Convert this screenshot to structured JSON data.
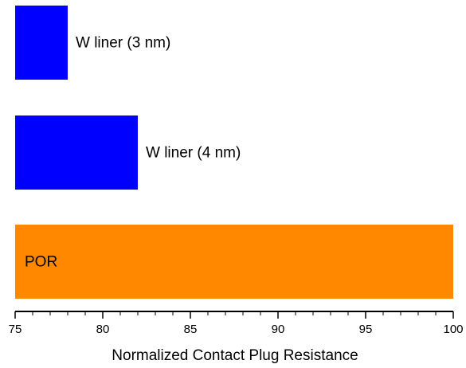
{
  "chart_data": {
    "type": "bar",
    "orientation": "horizontal",
    "categories": [
      "W liner (3 nm)",
      "W liner (4 nm)",
      "POR"
    ],
    "values": [
      78,
      82,
      100
    ],
    "colors": [
      "#0000ff",
      "#0000ff",
      "#ff8800"
    ],
    "title": "",
    "xlabel": "Normalized Contact Plug Resistance",
    "ylabel": "",
    "xlim": [
      75,
      100
    ],
    "xticks": [
      "75",
      "80",
      "85",
      "90",
      "95",
      "100"
    ],
    "grid": false,
    "legend": "none"
  }
}
